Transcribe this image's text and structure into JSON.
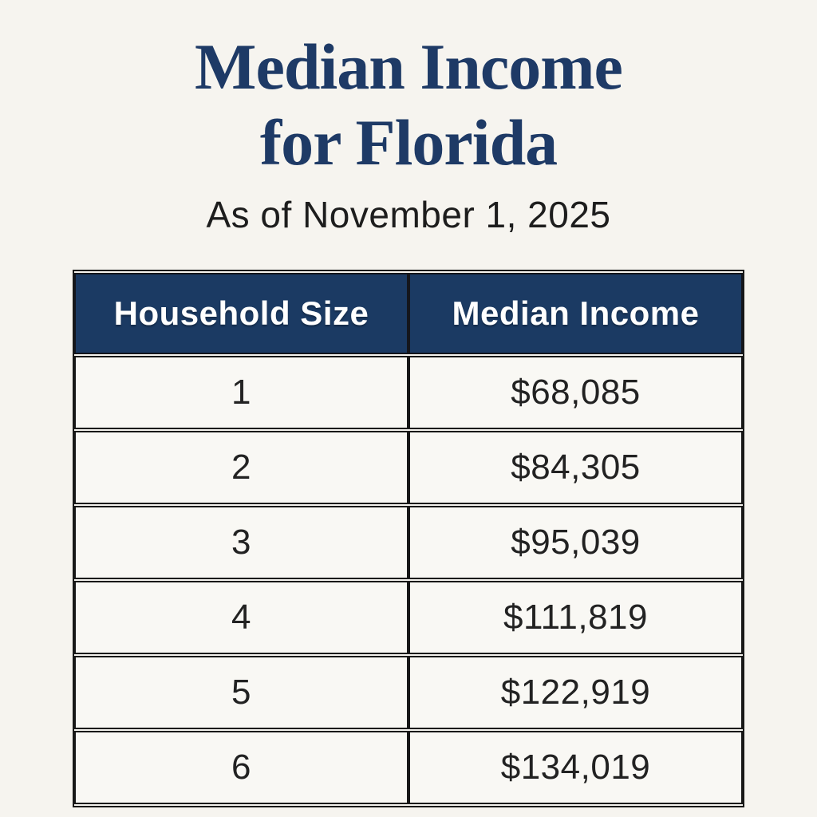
{
  "page": {
    "title": "Median Income\nfor Florida",
    "subtitle": "As of November 1, 2025"
  },
  "table": {
    "headers": {
      "household_size": "Household Size",
      "median_income": "Median Income"
    },
    "rows": [
      {
        "size": "1",
        "income": "$68,085"
      },
      {
        "size": "2",
        "income": "$84,305"
      },
      {
        "size": "3",
        "income": "$95,039"
      },
      {
        "size": "4",
        "income": "$111,819"
      },
      {
        "size": "5",
        "income": "$122,919"
      },
      {
        "size": "6",
        "income": "$134,019"
      }
    ]
  },
  "colors": {
    "background": "#f6f4ef",
    "title_navy": "#1e3a66",
    "header_navy": "#1b3a63",
    "header_text": "#ffffff",
    "body_text": "#222222",
    "cell_background": "#f9f8f4",
    "border": "#181818"
  }
}
